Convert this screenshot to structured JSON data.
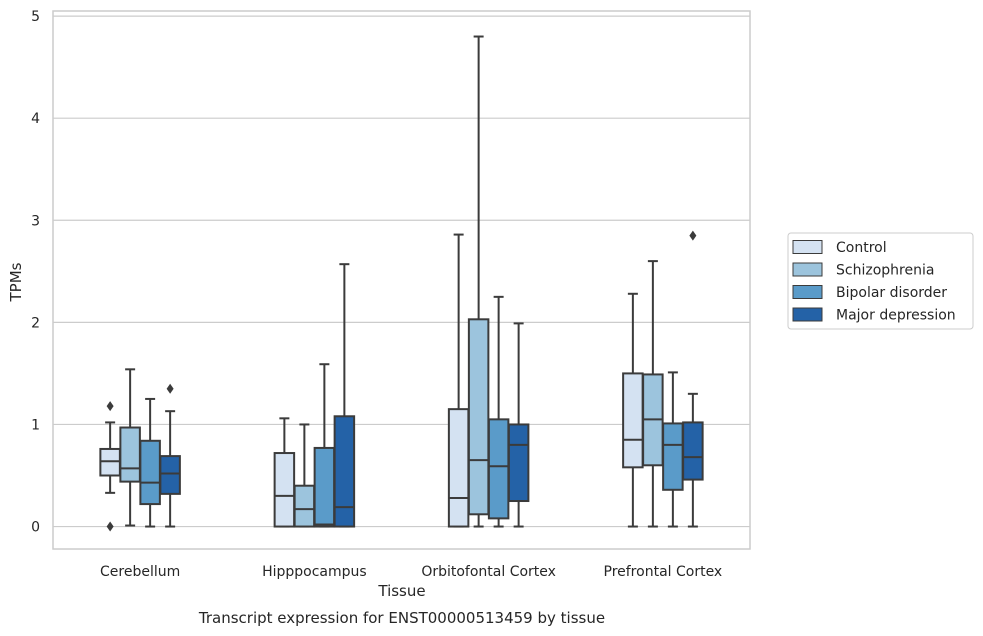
{
  "chart_data": {
    "type": "boxplot",
    "title": "",
    "caption": "Transcript expression for ENST00000513459 by tissue",
    "xlabel": "Tissue",
    "ylabel": "TPMs",
    "ylim": [
      -0.22,
      5.05
    ],
    "yticks": [
      "0",
      "1",
      "2",
      "3",
      "4",
      "5"
    ],
    "grid": "horizontal",
    "legend_position": "right",
    "categories": [
      "Cerebellum",
      "Hipppocampus",
      "Orbitofontal Cortex",
      "Prefrontal Cortex"
    ],
    "series": [
      {
        "name": "Control",
        "color": "#d4e2f2",
        "boxes": [
          {
            "whislo": 0.33,
            "q1": 0.5,
            "med": 0.64,
            "q3": 0.76,
            "whishi": 1.02,
            "fliers": [
              1.18,
              0.0
            ]
          },
          {
            "whislo": 0.0,
            "q1": 0.0,
            "med": 0.3,
            "q3": 0.72,
            "whishi": 1.06,
            "fliers": []
          },
          {
            "whislo": 0.0,
            "q1": 0.0,
            "med": 0.28,
            "q3": 1.15,
            "whishi": 2.86,
            "fliers": []
          },
          {
            "whislo": 0.0,
            "q1": 0.58,
            "med": 0.85,
            "q3": 1.5,
            "whishi": 2.28,
            "fliers": []
          }
        ]
      },
      {
        "name": "Schizophrenia",
        "color": "#9cc4dd",
        "boxes": [
          {
            "whislo": 0.01,
            "q1": 0.44,
            "med": 0.57,
            "q3": 0.97,
            "whishi": 1.54,
            "fliers": []
          },
          {
            "whislo": 0.0,
            "q1": 0.0,
            "med": 0.17,
            "q3": 0.4,
            "whishi": 1.0,
            "fliers": []
          },
          {
            "whislo": 0.0,
            "q1": 0.12,
            "med": 0.65,
            "q3": 2.03,
            "whishi": 4.8,
            "fliers": []
          },
          {
            "whislo": 0.0,
            "q1": 0.6,
            "med": 1.05,
            "q3": 1.49,
            "whishi": 2.6,
            "fliers": []
          }
        ]
      },
      {
        "name": "Bipolar disorder",
        "color": "#5a9bc9",
        "boxes": [
          {
            "whislo": 0.0,
            "q1": 0.22,
            "med": 0.43,
            "q3": 0.84,
            "whishi": 1.25,
            "fliers": []
          },
          {
            "whislo": 0.0,
            "q1": 0.0,
            "med": 0.02,
            "q3": 0.77,
            "whishi": 1.59,
            "fliers": []
          },
          {
            "whislo": 0.0,
            "q1": 0.08,
            "med": 0.59,
            "q3": 1.05,
            "whishi": 2.25,
            "fliers": []
          },
          {
            "whislo": 0.0,
            "q1": 0.36,
            "med": 0.8,
            "q3": 1.01,
            "whishi": 1.51,
            "fliers": []
          }
        ]
      },
      {
        "name": "Major depression",
        "color": "#2462a7",
        "boxes": [
          {
            "whislo": 0.0,
            "q1": 0.32,
            "med": 0.52,
            "q3": 0.69,
            "whishi": 1.13,
            "fliers": [
              1.35
            ]
          },
          {
            "whislo": 0.0,
            "q1": 0.0,
            "med": 0.19,
            "q3": 1.08,
            "whishi": 2.57,
            "fliers": []
          },
          {
            "whislo": 0.0,
            "q1": 0.25,
            "med": 0.8,
            "q3": 1.0,
            "whishi": 1.99,
            "fliers": []
          },
          {
            "whislo": 0.0,
            "q1": 0.46,
            "med": 0.68,
            "q3": 1.02,
            "whishi": 1.3,
            "fliers": [
              2.85
            ]
          }
        ]
      }
    ]
  }
}
